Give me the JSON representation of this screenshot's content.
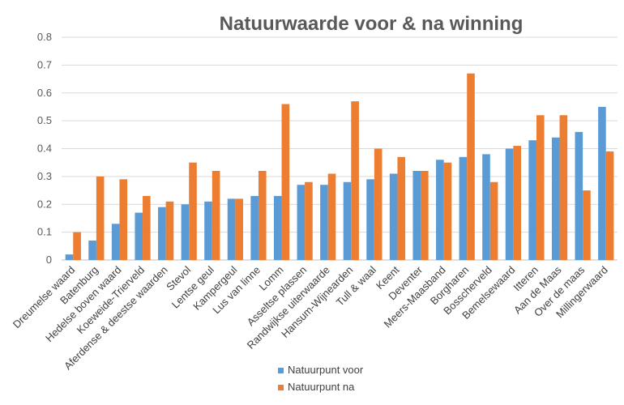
{
  "chart_data": {
    "type": "bar",
    "title": "Natuurwaarde voor & na winning",
    "xlabel": "",
    "ylabel": "",
    "ylim": [
      0,
      0.8
    ],
    "yticks": [
      "0",
      "0.1",
      "0.2",
      "0.3",
      "0.4",
      "0.5",
      "0.6",
      "0.7",
      "0.8"
    ],
    "grid": true,
    "legend_position": "bottom",
    "categories": [
      "Dreumelse waard",
      "Batenburg",
      "Hedelse boven waard",
      "Koeweide-Trierveld",
      "Aferdense & deestse waarden",
      "Stevol",
      "Lentse geul",
      "Kampergeul",
      "Lus van linne",
      "Lomm",
      "Asseltse plassen",
      "Randwijkse uiterwaarde",
      "Hansum-Wijnearden",
      "Tull & waal",
      "Keent",
      "Deventer",
      "Meers-Maasband",
      "Borgharen",
      "Bosscherveld",
      "Bemelsewaard",
      "Itteren",
      "Aan de Maas",
      "Over de maas",
      "Millingerwaard"
    ],
    "series": [
      {
        "name": "Natuurpunt voor",
        "color": "#5b9bd5",
        "values": [
          0.02,
          0.07,
          0.13,
          0.17,
          0.19,
          0.2,
          0.21,
          0.22,
          0.23,
          0.23,
          0.27,
          0.27,
          0.28,
          0.29,
          0.31,
          0.32,
          0.36,
          0.37,
          0.38,
          0.4,
          0.43,
          0.44,
          0.46,
          0.55
        ]
      },
      {
        "name": "Natuurpunt na",
        "color": "#ed7d31",
        "values": [
          0.1,
          0.3,
          0.29,
          0.23,
          0.21,
          0.35,
          0.32,
          0.22,
          0.32,
          0.56,
          0.28,
          0.31,
          0.57,
          0.4,
          0.37,
          0.32,
          0.35,
          0.67,
          0.28,
          0.41,
          0.52,
          0.52,
          0.25,
          0.39
        ]
      }
    ]
  }
}
